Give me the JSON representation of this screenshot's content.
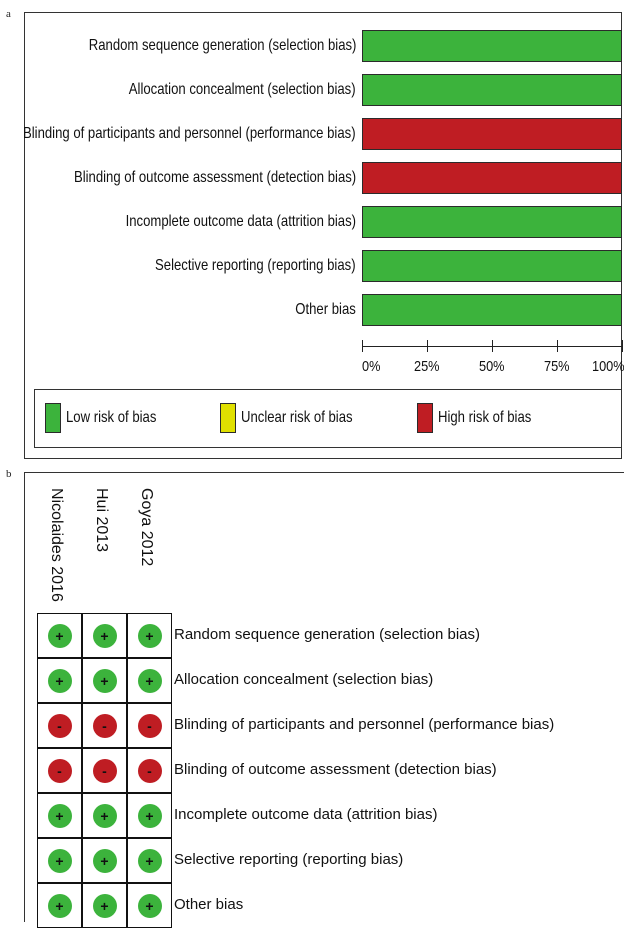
{
  "panel_a_letter": "a",
  "panel_b_letter": "b",
  "colors": {
    "low": "#3cb33c",
    "unclear": "#e0e000",
    "high": "#bf1d23"
  },
  "chart_data": [
    {
      "type": "bar",
      "orientation": "horizontal",
      "stacked": true,
      "categories": [
        "Random sequence generation (selection bias)",
        "Allocation concealment (selection bias)",
        "Blinding of participants and personnel (performance bias)",
        "Blinding of outcome assessment (detection bias)",
        "Incomplete outcome data (attrition bias)",
        "Selective reporting (reporting bias)",
        "Other bias"
      ],
      "series": [
        {
          "name": "Low risk of bias",
          "color": "#3cb33c",
          "values": [
            100,
            100,
            0,
            0,
            100,
            100,
            100
          ]
        },
        {
          "name": "Unclear risk of bias",
          "color": "#e0e000",
          "values": [
            0,
            0,
            0,
            0,
            0,
            0,
            0
          ]
        },
        {
          "name": "High risk of bias",
          "color": "#bf1d23",
          "values": [
            0,
            0,
            100,
            100,
            0,
            0,
            0
          ]
        }
      ],
      "x_ticks": [
        "0%",
        "25%",
        "50%",
        "75%",
        "100%"
      ],
      "xlim": [
        0,
        100
      ],
      "legend_position": "bottom"
    },
    {
      "type": "table",
      "studies": [
        "Nicolaides 2016",
        "Hui 2013",
        "Goya 2012"
      ],
      "domains": [
        "Random sequence generation (selection bias)",
        "Allocation concealment (selection bias)",
        "Blinding of participants and personnel (performance bias)",
        "Blinding of outcome assessment (detection bias)",
        "Incomplete outcome data (attrition bias)",
        "Selective reporting (reporting bias)",
        "Other bias"
      ],
      "judgements": [
        [
          "low",
          "low",
          "low"
        ],
        [
          "low",
          "low",
          "low"
        ],
        [
          "high",
          "high",
          "high"
        ],
        [
          "high",
          "high",
          "high"
        ],
        [
          "low",
          "low",
          "low"
        ],
        [
          "low",
          "low",
          "low"
        ],
        [
          "low",
          "low",
          "low"
        ]
      ],
      "symbols": {
        "low": "+",
        "high": "-"
      }
    }
  ]
}
